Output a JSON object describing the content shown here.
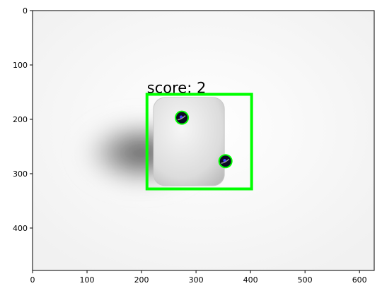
{
  "plot": {
    "x_ticks": [
      "0",
      "100",
      "200",
      "300",
      "400",
      "500",
      "600"
    ],
    "y_ticks": [
      "0",
      "100",
      "200",
      "300",
      "400"
    ],
    "xlim": [
      0,
      627
    ],
    "ylim": [
      478,
      0
    ]
  },
  "detection": {
    "label": "score: 2",
    "box_color": "#00ff00",
    "box_data": [
      210,
      154,
      402,
      328
    ]
  },
  "pips": [
    {
      "name": "pip-upper-left",
      "x": 274,
      "y": 197
    },
    {
      "name": "pip-lower-right",
      "x": 354,
      "y": 277
    }
  ],
  "colors": {
    "background": "#ffffff",
    "die_face": "#e6e6e6",
    "shadow": "#3c3c3c",
    "pip": "#0a0a22",
    "pip_ring": "#00ff00"
  }
}
